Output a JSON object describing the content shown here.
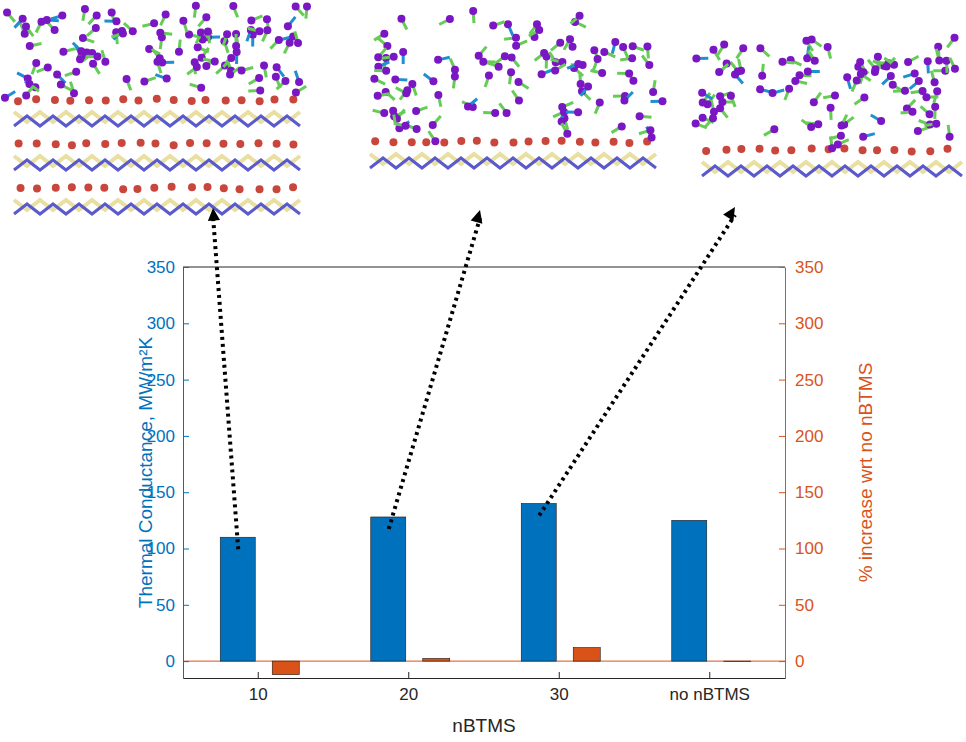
{
  "chart_data": {
    "type": "bar",
    "categories": [
      "10",
      "20",
      "30",
      "no nBTMS"
    ],
    "x_label": "nBTMS",
    "y_label": "Thermal Conductance, MW/m²K",
    "y2_label": "% increase wrt no nBTMS",
    "ylim": [
      -15,
      350
    ],
    "yticks": [
      0,
      50,
      100,
      150,
      200,
      250,
      300,
      350
    ],
    "y2lim": [
      -15,
      350
    ],
    "y2ticks": [
      0,
      50,
      100,
      150,
      200,
      250,
      300,
      350
    ],
    "series": [
      {
        "color": "#0072bd",
        "values": [
          110,
          128,
          140,
          125
        ]
      },
      {
        "color": "#d95319",
        "values": [
          -12,
          2.4,
          12,
          0
        ],
        "axis": "y2"
      }
    ]
  }
}
